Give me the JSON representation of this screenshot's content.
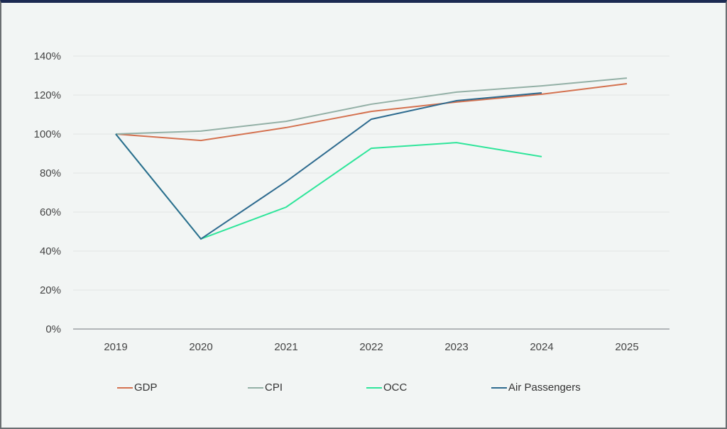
{
  "chart_data": {
    "type": "line",
    "categories": [
      "2019",
      "2020",
      "2021",
      "2022",
      "2023",
      "2024",
      "2025"
    ],
    "y_ticks": [
      "0%",
      "20%",
      "40%",
      "60%",
      "80%",
      "100%",
      "120%",
      "140%"
    ],
    "ylim": [
      0,
      140
    ],
    "grid": true,
    "legend_position": "bottom",
    "series": [
      {
        "name": "GDP",
        "color": "#d4714f",
        "values": [
          100,
          96.7,
          103.3,
          111.6,
          116.4,
          120.4,
          125.8
        ]
      },
      {
        "name": "CPI",
        "color": "#93b0a6",
        "values": [
          100,
          101.5,
          106.5,
          115.3,
          121.5,
          124.7,
          128.7
        ]
      },
      {
        "name": "OCC",
        "color": "#2ee59a",
        "values": [
          100,
          46.2,
          62.5,
          92.7,
          95.6,
          88.4,
          null
        ]
      },
      {
        "name": "Air Passengers",
        "color": "#2e6b8f",
        "values": [
          100,
          46.2,
          75.6,
          107.6,
          117.1,
          121.1,
          null
        ]
      }
    ]
  }
}
